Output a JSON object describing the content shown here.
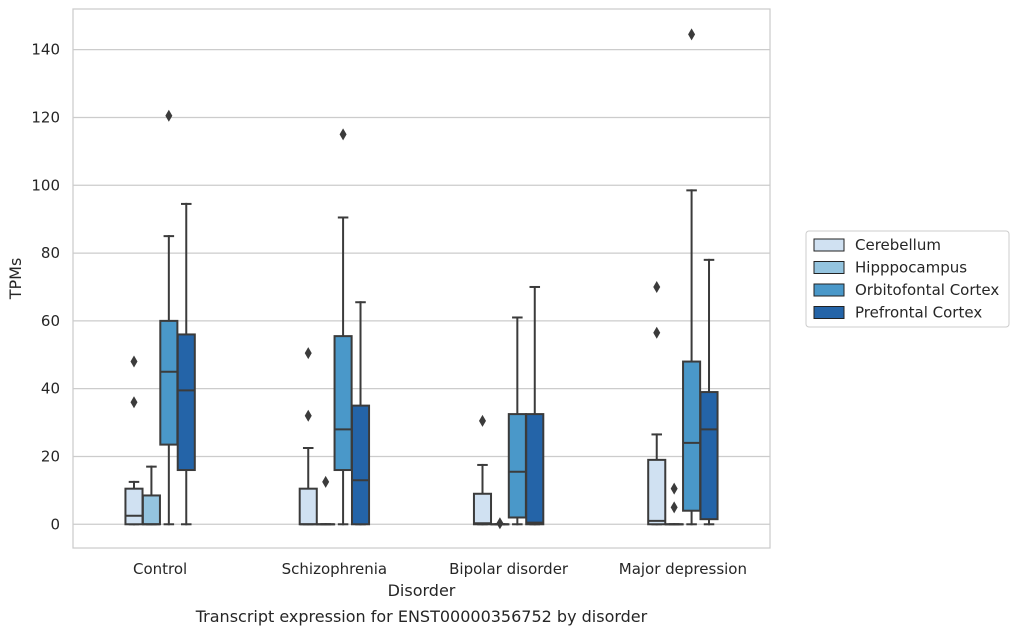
{
  "caption": "Transcript expression for ENST00000356752 by disorder",
  "chart_data": {
    "type": "box",
    "xlabel": "Disorder",
    "ylabel": "TPMs",
    "categories": [
      "Control",
      "Schizophrenia",
      "Bipolar disorder",
      "Major depression"
    ],
    "ylim": [
      -7,
      152
    ],
    "yticks": [
      0,
      20,
      40,
      60,
      80,
      100,
      120,
      140
    ],
    "grid": "horizontal",
    "legend_position": "right",
    "series": [
      {
        "name": "Cerebellum",
        "color": "#d0e1f2",
        "boxes": [
          {
            "whislo": 0,
            "q1": 0,
            "med": 2.5,
            "q3": 10.5,
            "whishi": 12.5,
            "fliers": [
              36,
              48
            ]
          },
          {
            "whislo": 0,
            "q1": 0,
            "med": 0,
            "q3": 10.5,
            "whishi": 22.5,
            "fliers": [
              32,
              50.5
            ]
          },
          {
            "whislo": 0,
            "q1": 0,
            "med": 0.3,
            "q3": 9,
            "whishi": 17.5,
            "fliers": [
              30.5
            ]
          },
          {
            "whislo": 0,
            "q1": 0,
            "med": 1,
            "q3": 19,
            "whishi": 26.5,
            "fliers": [
              56.5,
              70
            ]
          }
        ]
      },
      {
        "name": "Hipppocampus",
        "color": "#94c4df",
        "boxes": [
          {
            "whislo": 0,
            "q1": 0,
            "med": 0,
            "q3": 8.5,
            "whishi": 17,
            "fliers": []
          },
          {
            "whislo": 0,
            "q1": 0,
            "med": 0,
            "q3": 0,
            "whishi": 0,
            "fliers": [
              12.5
            ]
          },
          {
            "whislo": 0,
            "q1": 0,
            "med": 0,
            "q3": 0,
            "whishi": 0,
            "fliers": [
              0.3
            ]
          },
          {
            "whislo": 0,
            "q1": 0,
            "med": 0,
            "q3": 0,
            "whishi": 0,
            "fliers": [
              5,
              10.5
            ]
          }
        ]
      },
      {
        "name": "Orbitofontal Cortex",
        "color": "#4a98c9",
        "boxes": [
          {
            "whislo": 0,
            "q1": 23.5,
            "med": 45,
            "q3": 60,
            "whishi": 85,
            "fliers": [
              120.5
            ]
          },
          {
            "whislo": 0,
            "q1": 16,
            "med": 28,
            "q3": 55.5,
            "whishi": 90.5,
            "fliers": [
              115
            ]
          },
          {
            "whislo": 0,
            "q1": 2,
            "med": 15.5,
            "q3": 32.5,
            "whishi": 61,
            "fliers": []
          },
          {
            "whislo": 0,
            "q1": 4,
            "med": 24,
            "q3": 48,
            "whishi": 98.5,
            "fliers": [
              144.5
            ]
          }
        ]
      },
      {
        "name": "Prefrontal Cortex",
        "color": "#2464a8",
        "boxes": [
          {
            "whislo": 0,
            "q1": 16,
            "med": 39.5,
            "q3": 56,
            "whishi": 94.5,
            "fliers": []
          },
          {
            "whislo": 0,
            "q1": 0,
            "med": 13,
            "q3": 35,
            "whishi": 65.5,
            "fliers": []
          },
          {
            "whislo": 0,
            "q1": 0,
            "med": 0.5,
            "q3": 32.5,
            "whishi": 70,
            "fliers": []
          },
          {
            "whislo": 0,
            "q1": 1.5,
            "med": 28,
            "q3": 39,
            "whishi": 78,
            "fliers": []
          }
        ]
      }
    ]
  }
}
